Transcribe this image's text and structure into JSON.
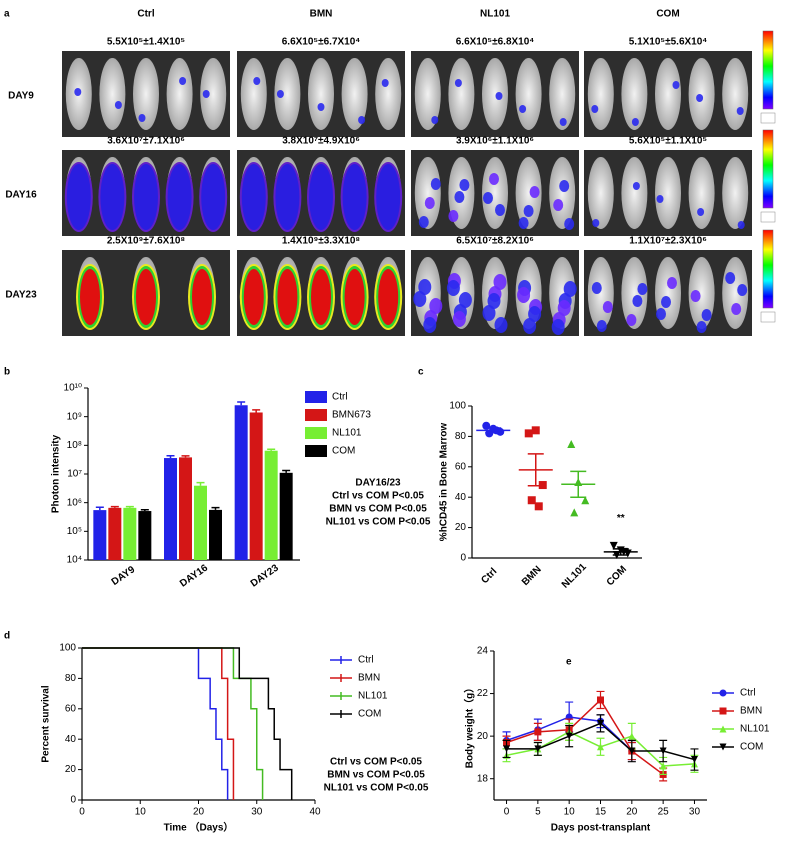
{
  "panel_a": {
    "label": "a",
    "columns": [
      "Ctrl",
      "BMN",
      "NL101",
      "COM"
    ],
    "rows": [
      {
        "day": "DAY9",
        "values": [
          "5.5X10⁵±1.4X10⁵",
          "6.6X10⁵±6.7X10⁴",
          "6.6X10⁵±6.8X10⁴",
          "5.1X10⁵±5.6X10⁴"
        ]
      },
      {
        "day": "DAY16",
        "values": [
          "3.6X10⁷±7.1X10⁶",
          "3.8X10⁷±4.9X10⁶",
          "3.9X10⁶±1.1X10⁶",
          "5.6X10⁵±1.1X10⁵"
        ]
      },
      {
        "day": "DAY23",
        "values": [
          "2.5X10⁹±7.6X10⁸",
          "1.4X10⁹±3.3X10⁸",
          "6.5X10⁷±8.2X10⁶",
          "1.1X10⁷±2.3X10⁶"
        ]
      }
    ]
  },
  "chart_data": [
    {
      "panel_label": "b",
      "type": "bar",
      "log_scale": true,
      "ylabel": "Photon intensity",
      "categories": [
        "DAY9",
        "DAY16",
        "DAY23"
      ],
      "series": [
        {
          "name": "Ctrl",
          "color": "#2222e8",
          "values": [
            550000,
            36000000,
            2500000000
          ],
          "errors": [
            140000,
            7100000,
            760000000
          ]
        },
        {
          "name": "BMN673",
          "color": "#d41616",
          "values": [
            660000,
            38000000,
            1400000000
          ],
          "errors": [
            67000,
            4900000,
            330000000
          ]
        },
        {
          "name": "NL101",
          "color": "#77ee33",
          "values": [
            660000,
            3900000,
            65000000
          ],
          "errors": [
            68000,
            1100000,
            8200000
          ]
        },
        {
          "name": "COM",
          "color": "#000000",
          "values": [
            510000,
            560000,
            11000000
          ],
          "errors": [
            56000,
            110000,
            2300000
          ]
        }
      ],
      "ylim": [
        10000,
        10000000000
      ],
      "yticks": [
        {
          "value": 10000,
          "label": "10⁴"
        },
        {
          "value": 100000,
          "label": "10⁵"
        },
        {
          "value": 1000000,
          "label": "10⁶"
        },
        {
          "value": 10000000,
          "label": "10⁷"
        },
        {
          "value": 100000000,
          "label": "10⁸"
        },
        {
          "value": 1000000000,
          "label": "10⁹"
        },
        {
          "value": 10000000000,
          "label": "10¹⁰"
        }
      ],
      "annotations": [
        "DAY16/23",
        "Ctrl vs COM P<0.05",
        "BMN  vs COM P<0.05",
        "NL101 vs COM P<0.05"
      ]
    },
    {
      "panel_label": "c",
      "type": "dot",
      "ylabel": "%hCD45 in Bone Marrow",
      "categories": [
        "Ctrl",
        "BMN",
        "NL101",
        "COM"
      ],
      "colors": [
        "#2222e8",
        "#d41616",
        "#44bb22",
        "#000000"
      ],
      "markers": [
        "circle",
        "square",
        "triangle",
        "triangle-down"
      ],
      "points": [
        [
          87,
          85,
          83,
          82,
          84
        ],
        [
          82,
          84,
          48,
          38,
          34
        ],
        [
          75,
          50,
          38,
          30
        ],
        [
          8,
          5,
          3,
          2,
          4
        ]
      ],
      "means": [
        84,
        58,
        48.5,
        4
      ],
      "sems": [
        1.5,
        10.5,
        8.5,
        2
      ],
      "ylim": [
        0,
        100
      ],
      "yticks": [
        0,
        20,
        40,
        60,
        80,
        100
      ],
      "annotation": "**"
    },
    {
      "panel_label": "d",
      "type": "step",
      "ylabel": "Percent survival",
      "xlabel": "Time （Days）",
      "series": [
        {
          "name": "Ctrl",
          "color": "#2222e8",
          "x": [
            0,
            20,
            22,
            23,
            24,
            25
          ],
          "values": [
            100,
            80,
            60,
            40,
            20,
            0
          ]
        },
        {
          "name": "BMN",
          "color": "#d41616",
          "x": [
            0,
            24,
            25,
            26
          ],
          "values": [
            100,
            80,
            40,
            0
          ]
        },
        {
          "name": "NL101",
          "color": "#44bb22",
          "x": [
            0,
            26,
            29,
            30,
            31
          ],
          "values": [
            100,
            80,
            60,
            20,
            0
          ]
        },
        {
          "name": "COM",
          "color": "#000000",
          "x": [
            0,
            27,
            32,
            33,
            34,
            36
          ],
          "values": [
            100,
            80,
            60,
            40,
            20,
            0
          ]
        }
      ],
      "xlim": [
        0,
        40
      ],
      "xticks": [
        0,
        10,
        20,
        30,
        40
      ],
      "ylim": [
        0,
        100
      ],
      "yticks": [
        0,
        20,
        40,
        60,
        80,
        100
      ],
      "annotations": [
        "Ctrl vs COM P<0.05",
        "BMN  vs COM P<0.05",
        "NL101 vs COM P<0.05"
      ]
    },
    {
      "panel_label": "e",
      "type": "line",
      "ylabel": "Body weight（g）",
      "xlabel": "Days post-transplant",
      "x": [
        0,
        5,
        10,
        15,
        20,
        25,
        30
      ],
      "series": [
        {
          "name": "Ctrl",
          "color": "#2222e8",
          "marker": "circle",
          "values": [
            19.8,
            20.3,
            20.9,
            20.7,
            19.3,
            null,
            null
          ],
          "errors": [
            0.4,
            0.5,
            0.7,
            0.3,
            0.4,
            null,
            null
          ]
        },
        {
          "name": "BMN",
          "color": "#d41616",
          "marker": "square",
          "values": [
            19.7,
            20.2,
            20.3,
            21.7,
            19.3,
            18.2,
            null
          ],
          "errors": [
            0.3,
            0.4,
            0.5,
            0.4,
            0.4,
            0.3,
            null
          ]
        },
        {
          "name": "NL101",
          "color": "#77ee33",
          "marker": "triangle",
          "values": [
            19.1,
            19.4,
            20.2,
            19.5,
            20,
            18.6,
            18.7
          ],
          "errors": [
            0.3,
            0.3,
            0.4,
            0.4,
            0.6,
            0.4,
            0.4
          ]
        },
        {
          "name": "COM",
          "color": "#000000",
          "marker": "triangle-down",
          "values": [
            19.4,
            19.4,
            20,
            20.6,
            19.3,
            19.3,
            18.9
          ],
          "errors": [
            0.4,
            0.3,
            0.5,
            0.4,
            0.5,
            0.5,
            0.5
          ]
        }
      ],
      "xlim": [
        -2,
        32
      ],
      "xticks": [
        0,
        5,
        10,
        15,
        20,
        25,
        30
      ],
      "ylim": [
        17,
        24
      ],
      "yticks": [
        18,
        20,
        22,
        24
      ]
    }
  ]
}
